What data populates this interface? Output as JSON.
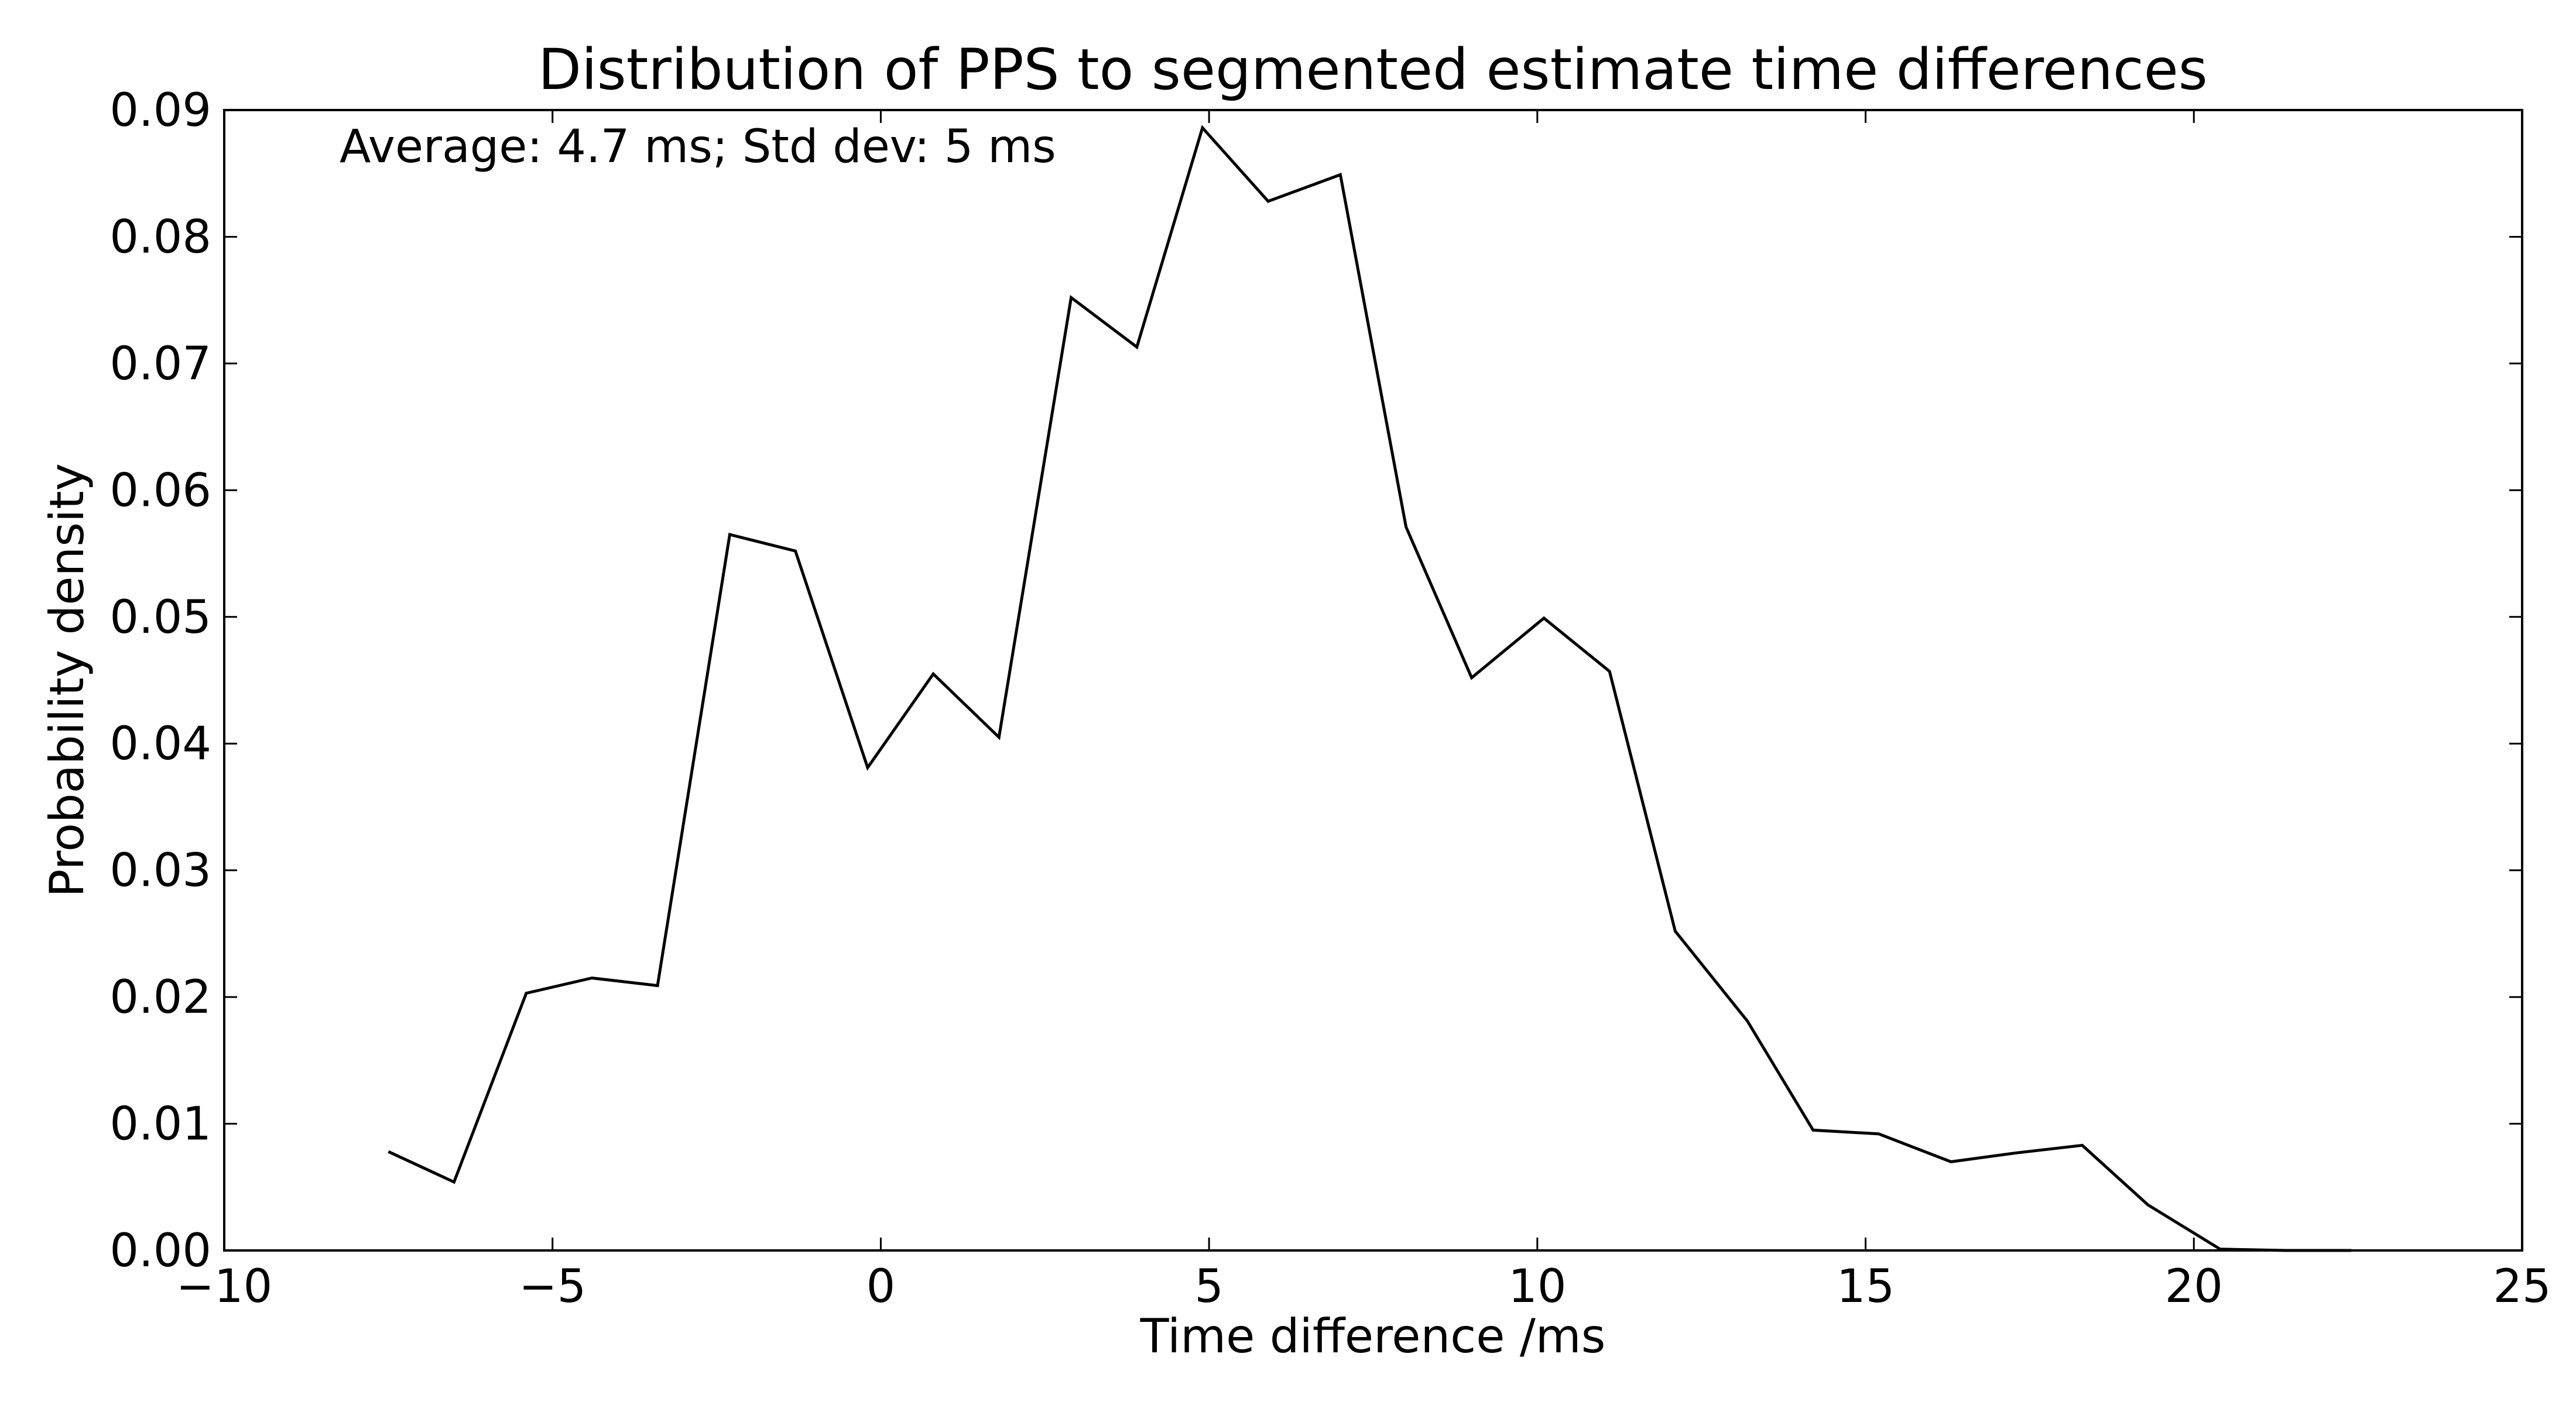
{
  "chart_data": {
    "type": "line",
    "title": "Distribution of PPS to segmented estimate time differences",
    "xlabel": "Time difference /ms",
    "ylabel": "Probability density",
    "xlim": [
      -10,
      25
    ],
    "ylim": [
      0,
      0.09
    ],
    "grid": false,
    "annotation": "Average: 4.7 ms;  Std dev: 5 ms",
    "xticks": [
      -10,
      -5,
      0,
      5,
      10,
      15,
      20,
      25
    ],
    "xtick_labels": [
      "−10",
      "−5",
      "0",
      "5",
      "10",
      "15",
      "20",
      "25"
    ],
    "yticks": [
      0,
      0.01,
      0.02,
      0.03,
      0.04,
      0.05,
      0.06,
      0.07,
      0.08,
      0.09
    ],
    "ytick_labels": [
      "0.00",
      "0.01",
      "0.02",
      "0.03",
      "0.04",
      "0.05",
      "0.06",
      "0.07",
      "0.08",
      "0.09"
    ],
    "series": [
      {
        "color": "#000000",
        "x": [
          -7.5,
          -6.5,
          -5.4,
          -4.4,
          -3.4,
          -2.3,
          -1.3,
          -0.2,
          0.8,
          1.8,
          2.9,
          3.9,
          4.9,
          5.9,
          7.0,
          8.0,
          9.0,
          10.1,
          11.1,
          12.1,
          13.2,
          14.2,
          15.2,
          16.3,
          17.3,
          18.3,
          19.3,
          20.4,
          21.4,
          22.4
        ],
        "y": [
          0.0078,
          0.0054,
          0.0203,
          0.0215,
          0.0209,
          0.0565,
          0.0552,
          0.0381,
          0.0455,
          0.0405,
          0.0752,
          0.0713,
          0.0886,
          0.0828,
          0.0849,
          0.0571,
          0.0452,
          0.0499,
          0.0457,
          0.0252,
          0.0181,
          0.0095,
          0.0092,
          0.007,
          0.0077,
          0.0083,
          0.0036,
          0.0001,
          0.0,
          0.0
        ]
      }
    ]
  }
}
